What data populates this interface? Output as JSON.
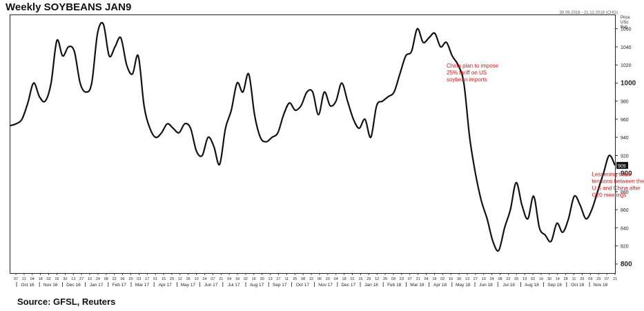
{
  "header": {
    "title": "Weekly SOYBEANS JAN9",
    "date_range": "30.09.2016 - 21.12.2018 (CHG)"
  },
  "footer": {
    "source": "Source: GFSL, Reuters"
  },
  "chart_data": {
    "type": "line",
    "title": "Weekly SOYBEANS JAN9",
    "ylabel_lines": [
      "Price",
      "USc",
      "Bsh"
    ],
    "ylim": [
      790,
      1075
    ],
    "yticks": [
      800,
      820,
      840,
      860,
      880,
      900,
      920,
      940,
      960,
      980,
      1000,
      1020,
      1040,
      1060
    ],
    "major_yticks": [
      800,
      900,
      1000
    ],
    "last_value_label": "909",
    "x_day_labels": [
      "07",
      "21",
      "04",
      "18",
      "02",
      "16",
      "30",
      "13",
      "27",
      "10",
      "24",
      "08",
      "22",
      "06",
      "20",
      "03",
      "17",
      "01",
      "15",
      "29",
      "12",
      "26",
      "10",
      "24",
      "07",
      "21",
      "04",
      "18",
      "02",
      "16",
      "30",
      "13",
      "27",
      "11",
      "25",
      "08",
      "22",
      "06",
      "20",
      "04",
      "18",
      "01",
      "15",
      "29",
      "12",
      "26",
      "09",
      "23",
      "07",
      "21",
      "04",
      "18",
      "02",
      "16",
      "30",
      "13",
      "27",
      "10",
      "24",
      "08",
      "22",
      "05",
      "19",
      "02",
      "16",
      "30",
      "14",
      "28",
      "11",
      "25",
      "09",
      "23",
      "07",
      "21"
    ],
    "x_month_labels": [
      "Oct 16",
      "Nov 16",
      "Dec 16",
      "Jan 17",
      "Feb 17",
      "Mar 17",
      "Apr 17",
      "May 17",
      "Jun 17",
      "Jul 17",
      "Aug 17",
      "Sep 17",
      "Oct 17",
      "Nov 17",
      "Dec 17",
      "Jan 18",
      "Feb 18",
      "Mar 18",
      "Apr 18",
      "May 18",
      "Jun 18",
      "Jul 18",
      "Aug 18",
      "Sep 18",
      "Oct 18",
      "Nov 18"
    ],
    "series": [
      {
        "values": [
          953,
          955,
          960,
          978,
          1000,
          985,
          980,
          1000,
          1047,
          1030,
          1040,
          1035,
          1000,
          990,
          1000,
          1055,
          1065,
          1030,
          1040,
          1050,
          1020,
          1010,
          1030,
          975,
          950,
          940,
          945,
          955,
          950,
          945,
          955,
          950,
          925,
          920,
          940,
          930,
          910,
          950,
          970,
          1000,
          990,
          1010,
          965,
          940,
          935,
          940,
          945,
          965,
          978,
          970,
          975,
          990,
          990,
          965,
          990,
          975,
          980,
          1000,
          980,
          960,
          950,
          960,
          940,
          975,
          980,
          985,
          990,
          1010,
          1030,
          1035,
          1060,
          1045,
          1050,
          1055,
          1040,
          1045,
          1030,
          1020,
          1000,
          940,
          900,
          870,
          850,
          825,
          815,
          840,
          860,
          890,
          865,
          850,
          875,
          840,
          832,
          825,
          845,
          835,
          850,
          875,
          865,
          850,
          860,
          880,
          900,
          920,
          909
        ],
        "color": "#111111"
      }
    ],
    "annotations": [
      {
        "lines": [
          "China plan to impose",
          "25% tariff on US",
          "soybean imports"
        ],
        "at_index": 78,
        "value": 1020
      },
      {
        "lines": [
          "Lessening trade",
          "tensions between the",
          "U.S and China after",
          "G20 meetings"
        ],
        "at_index": 103,
        "value": 900
      }
    ],
    "grid": false,
    "legend": "none"
  }
}
